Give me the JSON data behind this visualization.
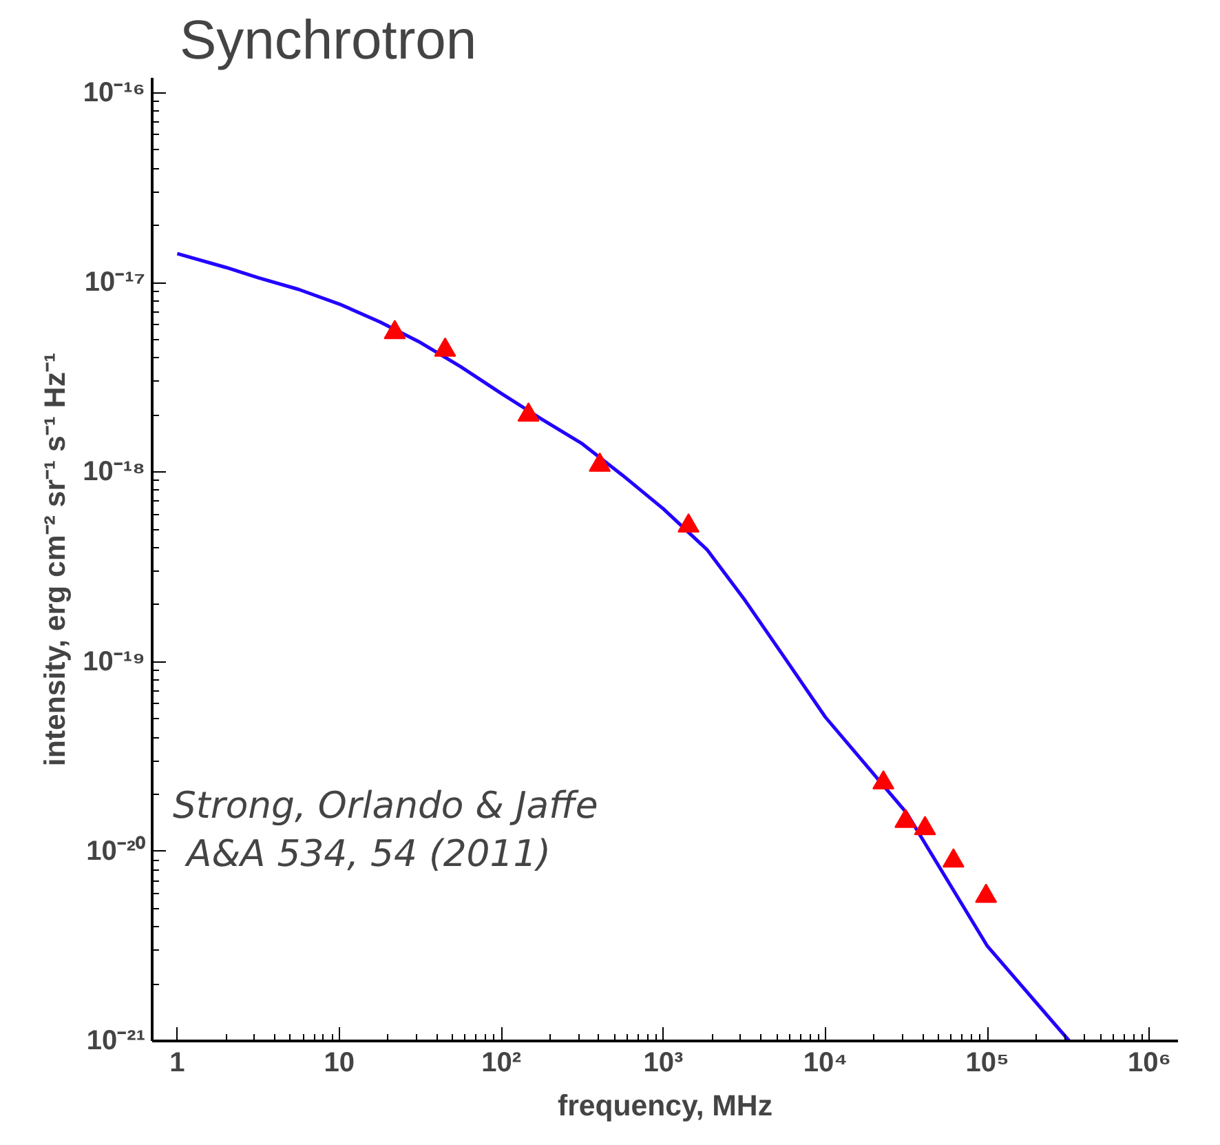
{
  "chart_data": {
    "type": "scatter",
    "title": "Synchrotron",
    "xlabel": "frequency, MHz",
    "ylabel": "intensity, erg cm⁻² sr⁻¹ s⁻¹ Hz⁻¹",
    "log": "xy",
    "grid": false,
    "xlim": [
      0.7,
      1500000
    ],
    "ylim": [
      1e-21,
      1.2e-16
    ],
    "xticks": [
      1,
      10,
      {
        "value": 100,
        "label": "10²"
      },
      {
        "value": 1000,
        "label": "10³"
      },
      {
        "value": 10000,
        "label": "10⁴"
      },
      {
        "value": 100000,
        "label": "10⁵"
      },
      {
        "value": 1000000,
        "label": "10⁶"
      }
    ],
    "yticks": [
      {
        "value": 1e-21,
        "label": "10⁻²¹"
      },
      {
        "value": 1e-20,
        "label": "10⁻²⁰"
      },
      {
        "value": 1e-19,
        "label": "10⁻¹⁹"
      },
      {
        "value": 1e-18,
        "label": "10⁻¹⁸"
      },
      {
        "value": 1e-17,
        "label": "10⁻¹⁷"
      },
      {
        "value": 1e-16,
        "label": "10⁻¹⁶"
      }
    ],
    "annotations": [
      "Strong, Orlando & Jaffe",
      "A&A 534, 54 (2011)"
    ],
    "series": [
      {
        "type": "line",
        "color": "#2200ff",
        "x": [
          1,
          2,
          3.16,
          5.6,
          10,
          17.8,
          31.6,
          56,
          100,
          178,
          316,
          562,
          1000,
          1860,
          3200,
          5600,
          10000,
          31600,
          100000,
          320000
        ],
        "values": [
          1.42e-17,
          1.2e-17,
          1.06e-17,
          9.2e-18,
          7.7e-18,
          6.2e-18,
          4.83e-18,
          3.6e-18,
          2.6e-18,
          1.9e-18,
          1.41e-18,
          9.6e-19,
          6.4e-19,
          3.9e-19,
          2.1e-19,
          1.05e-19,
          5.1e-20,
          1.6e-20,
          3.16e-21,
          1e-21
        ]
      },
      {
        "color": "#ff0000",
        "marker": "triangle",
        "x": [
          22,
          45,
          147,
          405,
          1430,
          22800,
          31200,
          41200,
          61700,
          98000
        ],
        "values": [
          5.45e-18,
          4.4e-18,
          2e-18,
          1.09e-18,
          5.2e-19,
          2.3e-20,
          1.44e-20,
          1.32e-20,
          8.9e-21,
          5.8e-21
        ]
      }
    ]
  }
}
